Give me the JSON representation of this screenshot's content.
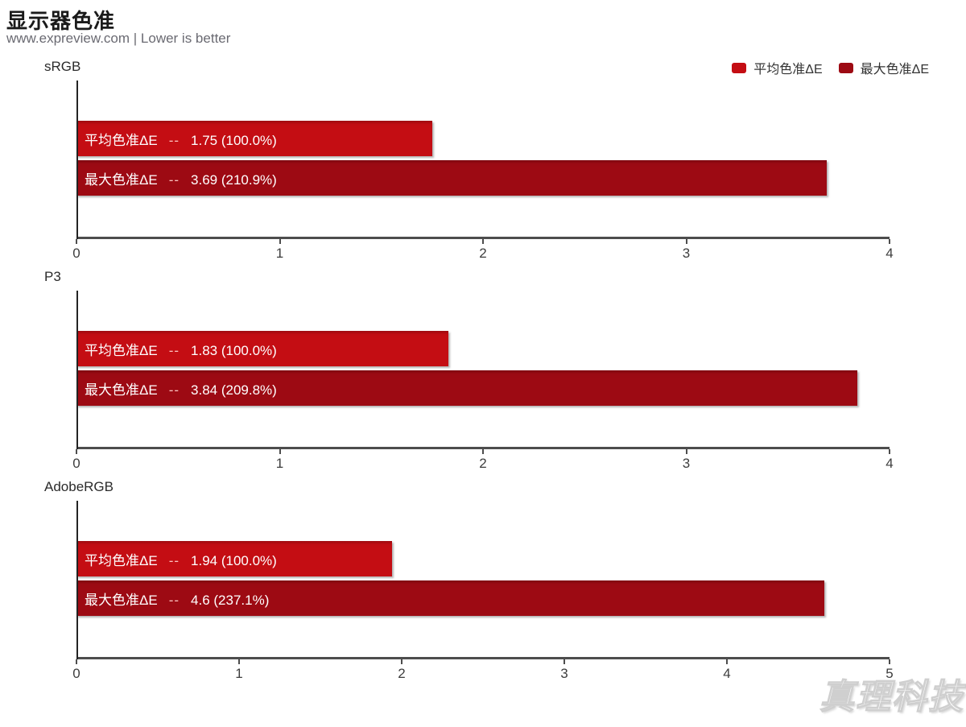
{
  "header": {
    "title": "显示器色准",
    "subtitle": "www.expreview.com | Lower is better"
  },
  "legend": [
    {
      "label": "平均色准ΔE",
      "color": "#c40d13"
    },
    {
      "label": "最大色准ΔE",
      "color": "#9d0a13"
    }
  ],
  "colors": {
    "avg_bar": "#c40d13",
    "max_bar": "#9d0a13",
    "axis": "#4d4d4d"
  },
  "watermark": "真理科技",
  "chart_data": [
    {
      "type": "bar",
      "group": "sRGB",
      "xlim": [
        0,
        4
      ],
      "ticks": [
        0,
        1,
        2,
        3,
        4
      ],
      "bars": [
        {
          "series": "平均色准ΔE",
          "value": 1.75,
          "percent": "100.0%",
          "color": "#c40d13"
        },
        {
          "series": "最大色准ΔE",
          "value": 3.69,
          "percent": "210.9%",
          "color": "#9d0a13"
        }
      ]
    },
    {
      "type": "bar",
      "group": "P3",
      "xlim": [
        0,
        4
      ],
      "ticks": [
        0,
        1,
        2,
        3,
        4
      ],
      "bars": [
        {
          "series": "平均色准ΔE",
          "value": 1.83,
          "percent": "100.0%",
          "color": "#c40d13"
        },
        {
          "series": "最大色准ΔE",
          "value": 3.84,
          "percent": "209.8%",
          "color": "#9d0a13"
        }
      ]
    },
    {
      "type": "bar",
      "group": "AdobeRGB",
      "xlim": [
        0,
        5
      ],
      "ticks": [
        0,
        1,
        2,
        3,
        4,
        5
      ],
      "bars": [
        {
          "series": "平均色准ΔE",
          "value": 1.94,
          "percent": "100.0%",
          "color": "#c40d13"
        },
        {
          "series": "最大色准ΔE",
          "value": 4.6,
          "percent": "237.1%",
          "color": "#9d0a13"
        }
      ]
    }
  ]
}
